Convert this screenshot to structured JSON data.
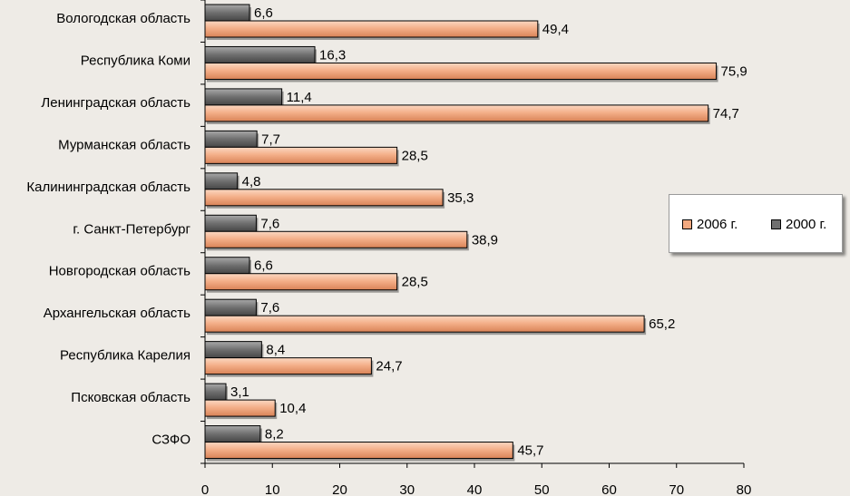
{
  "chart_data": {
    "type": "bar",
    "orientation": "horizontal",
    "categories": [
      "Вологодская область",
      "Республика Коми",
      "Ленинградская область",
      "Мурманская область",
      "Калининградская область",
      "г. Санкт-Петербург",
      "Новгородская область",
      "Архангельская область",
      "Республика Карелия",
      "Псковская область",
      "СЗФО"
    ],
    "series": [
      {
        "name": "2000 г.",
        "color": "#6f6f6f",
        "values": [
          6.6,
          16.3,
          11.4,
          7.7,
          4.8,
          7.6,
          6.6,
          7.6,
          8.4,
          3.1,
          8.2
        ],
        "labels": [
          "6,6",
          "16,3",
          "11,4",
          "7,7",
          "4,8",
          "7,6",
          "6,6",
          "7,6",
          "8,4",
          "3,1",
          "8,2"
        ]
      },
      {
        "name": "2006 г.",
        "color": "#f2a980",
        "values": [
          49.4,
          75.9,
          74.7,
          28.5,
          35.3,
          38.9,
          28.5,
          65.2,
          24.7,
          10.4,
          45.7
        ],
        "labels": [
          "49,4",
          "75,9",
          "74,7",
          "28,5",
          "35,3",
          "38,9",
          "28,5",
          "65,2",
          "24,7",
          "10,4",
          "45,7"
        ]
      }
    ],
    "xlim": [
      0,
      80
    ],
    "xticks": [
      0,
      10,
      20,
      30,
      40,
      50,
      60,
      70,
      80
    ],
    "xtick_labels": [
      "0",
      "10",
      "20",
      "30",
      "40",
      "50",
      "60",
      "70",
      "80"
    ],
    "title": "",
    "xlabel": "",
    "ylabel": "",
    "grid": false,
    "legend": {
      "position": "right",
      "entries": [
        "2006 г.",
        "2000 г."
      ]
    }
  }
}
